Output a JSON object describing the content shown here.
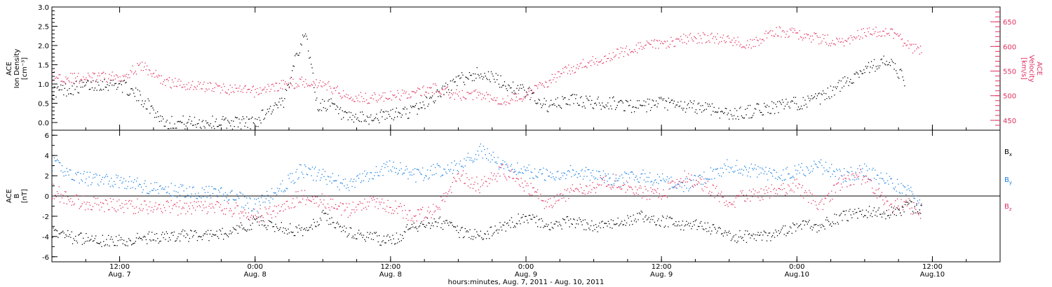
{
  "colors": {
    "black": "#000000",
    "red": "#e0305f",
    "blue": "#1a7fe0"
  },
  "xaxis": {
    "title": "hours:minutes, Aug.  7, 2011 - Aug. 10, 2011",
    "start": "2011-08-07T06:00",
    "end": "2011-08-10T18:00",
    "ticks": [
      {
        "time": "2011-08-07T12:00",
        "line1": "12:00",
        "line2": "Aug. 7"
      },
      {
        "time": "2011-08-08T00:00",
        "line1": "0:00",
        "line2": "Aug. 8"
      },
      {
        "time": "2011-08-08T12:00",
        "line1": "12:00",
        "line2": "Aug. 8"
      },
      {
        "time": "2011-08-09T00:00",
        "line1": "0:00",
        "line2": "Aug. 9"
      },
      {
        "time": "2011-08-09T12:00",
        "line1": "12:00",
        "line2": "Aug. 9"
      },
      {
        "time": "2011-08-10T00:00",
        "line1": "0:00",
        "line2": "Aug.10"
      },
      {
        "time": "2011-08-10T12:00",
        "line1": "12:00",
        "line2": "Aug.10"
      }
    ]
  },
  "chart_data": [
    {
      "type": "scatter",
      "panel": "top",
      "left_axis": {
        "label_lines": [
          "ACE",
          "Ion Density",
          "[cm⁻³]"
        ],
        "ylim": [
          -0.2,
          3.0
        ],
        "ticks": [
          "0.0",
          "0.5",
          "1.0",
          "1.5",
          "2.0",
          "2.5",
          "3.0"
        ],
        "tick_values": [
          0.0,
          0.5,
          1.0,
          1.5,
          2.0,
          2.5,
          3.0
        ],
        "color": "#000000"
      },
      "right_axis": {
        "label_lines": [
          "ACE",
          "Velocity",
          "[km/s]"
        ],
        "ylim": [
          430,
          680
        ],
        "ticks": [
          "450",
          "500",
          "550",
          "600",
          "650"
        ],
        "tick_values": [
          450,
          500,
          550,
          600,
          650
        ],
        "color": "#e0305f"
      },
      "series": [
        {
          "axis": "left",
          "color": "#000000",
          "points": [
            [
              "2011-08-07T06:00",
              0.8
            ],
            [
              "2011-08-07T08:00",
              0.9
            ],
            [
              "2011-08-07T10:00",
              1.0
            ],
            [
              "2011-08-07T12:00",
              1.0
            ],
            [
              "2011-08-07T14:00",
              0.6
            ],
            [
              "2011-08-07T16:00",
              0.0
            ],
            [
              "2011-08-07T20:00",
              0.0
            ],
            [
              "2011-08-08T00:00",
              0.0
            ],
            [
              "2011-08-08T01:00",
              0.3
            ],
            [
              "2011-08-08T02:30",
              0.5
            ],
            [
              "2011-08-08T03:30",
              1.7
            ],
            [
              "2011-08-08T04:30",
              2.3
            ],
            [
              "2011-08-08T05:30",
              0.4
            ],
            [
              "2011-08-08T06:30",
              0.5
            ],
            [
              "2011-08-08T08:00",
              0.1
            ],
            [
              "2011-08-08T10:00",
              0.1
            ],
            [
              "2011-08-08T12:00",
              0.2
            ],
            [
              "2011-08-08T14:00",
              0.3
            ],
            [
              "2011-08-08T16:00",
              0.7
            ],
            [
              "2011-08-08T18:00",
              1.1
            ],
            [
              "2011-08-08T20:00",
              1.3
            ],
            [
              "2011-08-08T22:00",
              1.0
            ],
            [
              "2011-08-09T00:00",
              0.8
            ],
            [
              "2011-08-09T02:00",
              0.4
            ],
            [
              "2011-08-09T04:00",
              0.6
            ],
            [
              "2011-08-09T06:00",
              0.5
            ],
            [
              "2011-08-09T08:00",
              0.5
            ],
            [
              "2011-08-09T10:00",
              0.4
            ],
            [
              "2011-08-09T12:00",
              0.5
            ],
            [
              "2011-08-09T14:00",
              0.4
            ],
            [
              "2011-08-09T16:00",
              0.4
            ],
            [
              "2011-08-09T18:00",
              0.2
            ],
            [
              "2011-08-09T20:00",
              0.3
            ],
            [
              "2011-08-09T22:00",
              0.4
            ],
            [
              "2011-08-10T00:00",
              0.5
            ],
            [
              "2011-08-10T02:00",
              0.6
            ],
            [
              "2011-08-10T04:00",
              1.0
            ],
            [
              "2011-08-10T06:00",
              1.4
            ],
            [
              "2011-08-10T08:00",
              1.6
            ],
            [
              "2011-08-10T09:30",
              1.1
            ]
          ]
        },
        {
          "axis": "right",
          "color": "#e0305f",
          "points": [
            [
              "2011-08-07T06:00",
              540
            ],
            [
              "2011-08-07T08:00",
              535
            ],
            [
              "2011-08-07T10:00",
              537
            ],
            [
              "2011-08-07T12:00",
              538
            ],
            [
              "2011-08-07T14:00",
              560
            ],
            [
              "2011-08-07T16:00",
              528
            ],
            [
              "2011-08-07T18:00",
              522
            ],
            [
              "2011-08-07T20:00",
              518
            ],
            [
              "2011-08-07T22:00",
              512
            ],
            [
              "2011-08-08T00:00",
              508
            ],
            [
              "2011-08-08T02:00",
              520
            ],
            [
              "2011-08-08T04:00",
              528
            ],
            [
              "2011-08-08T06:00",
              525
            ],
            [
              "2011-08-08T08:00",
              500
            ],
            [
              "2011-08-08T10:00",
              495
            ],
            [
              "2011-08-08T12:00",
              498
            ],
            [
              "2011-08-08T14:00",
              505
            ],
            [
              "2011-08-08T16:00",
              515
            ],
            [
              "2011-08-08T18:00",
              500
            ],
            [
              "2011-08-08T20:00",
              503
            ],
            [
              "2011-08-08T22:00",
              490
            ],
            [
              "2011-08-09T00:00",
              500
            ],
            [
              "2011-08-09T02:00",
              530
            ],
            [
              "2011-08-09T04:00",
              555
            ],
            [
              "2011-08-09T06:00",
              570
            ],
            [
              "2011-08-09T08:00",
              585
            ],
            [
              "2011-08-09T10:00",
              598
            ],
            [
              "2011-08-09T12:00",
              605
            ],
            [
              "2011-08-09T14:00",
              615
            ],
            [
              "2011-08-09T16:00",
              618
            ],
            [
              "2011-08-09T18:00",
              612
            ],
            [
              "2011-08-09T20:00",
              605
            ],
            [
              "2011-08-09T22:00",
              630
            ],
            [
              "2011-08-10T00:00",
              625
            ],
            [
              "2011-08-10T02:00",
              615
            ],
            [
              "2011-08-10T04:00",
              608
            ],
            [
              "2011-08-10T06:00",
              628
            ],
            [
              "2011-08-10T08:00",
              632
            ],
            [
              "2011-08-10T10:00",
              600
            ],
            [
              "2011-08-10T11:00",
              590
            ]
          ]
        }
      ]
    },
    {
      "type": "scatter",
      "panel": "bottom",
      "left_axis": {
        "label_lines": [
          "ACE",
          "B",
          "[nT]"
        ],
        "ylim": [
          -6.5,
          6.5
        ],
        "ticks": [
          "-6",
          "-4",
          "-2",
          "0",
          "2",
          "4",
          "6"
        ],
        "tick_values": [
          -6,
          -4,
          -2,
          0,
          2,
          4,
          6
        ],
        "color": "#000000"
      },
      "zero_line": 0,
      "legend": [
        {
          "label": "B",
          "sub": "x",
          "color": "#000000"
        },
        {
          "label": "B",
          "sub": "y",
          "color": "#1a7fe0"
        },
        {
          "label": "B",
          "sub": "z",
          "color": "#e0305f"
        }
      ],
      "series": [
        {
          "name": "Bx",
          "color": "#000000",
          "points": [
            [
              "2011-08-07T06:00",
              -3.5
            ],
            [
              "2011-08-07T08:00",
              -4.2
            ],
            [
              "2011-08-07T10:00",
              -4.4
            ],
            [
              "2011-08-07T12:00",
              -4.4
            ],
            [
              "2011-08-07T14:00",
              -4.2
            ],
            [
              "2011-08-07T16:00",
              -4.0
            ],
            [
              "2011-08-07T18:00",
              -3.9
            ],
            [
              "2011-08-07T20:00",
              -3.9
            ],
            [
              "2011-08-07T22:00",
              -3.6
            ],
            [
              "2011-08-08T00:00",
              -2.5
            ],
            [
              "2011-08-08T02:00",
              -3.0
            ],
            [
              "2011-08-08T04:00",
              -3.5
            ],
            [
              "2011-08-08T06:00",
              -2.0
            ],
            [
              "2011-08-08T08:00",
              -3.5
            ],
            [
              "2011-08-08T10:00",
              -4.0
            ],
            [
              "2011-08-08T12:00",
              -4.5
            ],
            [
              "2011-08-08T14:00",
              -3.0
            ],
            [
              "2011-08-08T16:00",
              -2.5
            ],
            [
              "2011-08-08T18:00",
              -3.5
            ],
            [
              "2011-08-08T20:00",
              -4.0
            ],
            [
              "2011-08-08T22:00",
              -3.0
            ],
            [
              "2011-08-09T00:00",
              -2.0
            ],
            [
              "2011-08-09T02:00",
              -3.0
            ],
            [
              "2011-08-09T04:00",
              -2.5
            ],
            [
              "2011-08-09T06:00",
              -3.0
            ],
            [
              "2011-08-09T08:00",
              -2.8
            ],
            [
              "2011-08-09T10:00",
              -2.0
            ],
            [
              "2011-08-09T12:00",
              -2.5
            ],
            [
              "2011-08-09T14:00",
              -2.8
            ],
            [
              "2011-08-09T16:00",
              -3.0
            ],
            [
              "2011-08-09T18:00",
              -4.0
            ],
            [
              "2011-08-09T20:00",
              -4.0
            ],
            [
              "2011-08-09T22:00",
              -3.8
            ],
            [
              "2011-08-10T00:00",
              -3.0
            ],
            [
              "2011-08-10T02:00",
              -3.0
            ],
            [
              "2011-08-10T04:00",
              -2.0
            ],
            [
              "2011-08-10T06:00",
              -1.5
            ],
            [
              "2011-08-10T08:00",
              -1.8
            ],
            [
              "2011-08-10T10:00",
              -1.0
            ],
            [
              "2011-08-10T11:00",
              -1.5
            ]
          ]
        },
        {
          "name": "By",
          "color": "#1a7fe0",
          "points": [
            [
              "2011-08-07T06:00",
              3.2
            ],
            [
              "2011-08-07T08:00",
              2.0
            ],
            [
              "2011-08-07T10:00",
              1.5
            ],
            [
              "2011-08-07T12:00",
              1.5
            ],
            [
              "2011-08-07T14:00",
              1.0
            ],
            [
              "2011-08-07T16:00",
              0.6
            ],
            [
              "2011-08-07T18:00",
              0.5
            ],
            [
              "2011-08-07T20:00",
              0.3
            ],
            [
              "2011-08-07T22:00",
              0.0
            ],
            [
              "2011-08-08T00:00",
              -1.0
            ],
            [
              "2011-08-08T02:00",
              0.5
            ],
            [
              "2011-08-08T04:00",
              2.5
            ],
            [
              "2011-08-08T06:00",
              2.0
            ],
            [
              "2011-08-08T08:00",
              1.0
            ],
            [
              "2011-08-08T10:00",
              2.0
            ],
            [
              "2011-08-08T12:00",
              3.0
            ],
            [
              "2011-08-08T14:00",
              2.0
            ],
            [
              "2011-08-08T16:00",
              2.5
            ],
            [
              "2011-08-08T18:00",
              3.0
            ],
            [
              "2011-08-08T20:00",
              4.5
            ],
            [
              "2011-08-08T22:00",
              3.0
            ],
            [
              "2011-08-09T00:00",
              2.5
            ],
            [
              "2011-08-09T02:00",
              2.0
            ],
            [
              "2011-08-09T04:00",
              2.5
            ],
            [
              "2011-08-09T06:00",
              2.0
            ],
            [
              "2011-08-09T08:00",
              1.5
            ],
            [
              "2011-08-09T10:00",
              2.0
            ],
            [
              "2011-08-09T12:00",
              1.5
            ],
            [
              "2011-08-09T14:00",
              1.0
            ],
            [
              "2011-08-09T16:00",
              2.0
            ],
            [
              "2011-08-09T18:00",
              3.0
            ],
            [
              "2011-08-09T20:00",
              2.5
            ],
            [
              "2011-08-09T22:00",
              2.0
            ],
            [
              "2011-08-10T00:00",
              2.5
            ],
            [
              "2011-08-10T02:00",
              3.0
            ],
            [
              "2011-08-10T04:00",
              2.0
            ],
            [
              "2011-08-10T06:00",
              2.5
            ],
            [
              "2011-08-10T08:00",
              1.5
            ],
            [
              "2011-08-10T10:00",
              0.5
            ],
            [
              "2011-08-10T11:00",
              -1.0
            ]
          ]
        },
        {
          "name": "Bz",
          "color": "#e0305f",
          "points": [
            [
              "2011-08-07T06:00",
              0.5
            ],
            [
              "2011-08-07T08:00",
              -0.5
            ],
            [
              "2011-08-07T10:00",
              -0.8
            ],
            [
              "2011-08-07T12:00",
              -1.0
            ],
            [
              "2011-08-07T14:00",
              -1.0
            ],
            [
              "2011-08-07T16:00",
              -1.1
            ],
            [
              "2011-08-07T18:00",
              -1.2
            ],
            [
              "2011-08-07T20:00",
              -1.2
            ],
            [
              "2011-08-07T22:00",
              -1.3
            ],
            [
              "2011-08-08T00:00",
              -2.0
            ],
            [
              "2011-08-08T02:00",
              -1.5
            ],
            [
              "2011-08-08T04:00",
              0.0
            ],
            [
              "2011-08-08T06:00",
              -0.5
            ],
            [
              "2011-08-08T08:00",
              -1.5
            ],
            [
              "2011-08-08T10:00",
              -0.5
            ],
            [
              "2011-08-08T12:00",
              -1.0
            ],
            [
              "2011-08-08T14:00",
              -2.0
            ],
            [
              "2011-08-08T16:00",
              -1.5
            ],
            [
              "2011-08-08T18:00",
              2.0
            ],
            [
              "2011-08-08T20:00",
              1.0
            ],
            [
              "2011-08-08T22:00",
              2.5
            ],
            [
              "2011-08-09T00:00",
              1.0
            ],
            [
              "2011-08-09T02:00",
              -1.0
            ],
            [
              "2011-08-09T04:00",
              0.5
            ],
            [
              "2011-08-09T06:00",
              1.0
            ],
            [
              "2011-08-09T08:00",
              1.5
            ],
            [
              "2011-08-09T10:00",
              0.5
            ],
            [
              "2011-08-09T12:00",
              0.0
            ],
            [
              "2011-08-09T14:00",
              2.0
            ],
            [
              "2011-08-09T16:00",
              1.0
            ],
            [
              "2011-08-09T18:00",
              -0.5
            ],
            [
              "2011-08-09T20:00",
              0.0
            ],
            [
              "2011-08-09T22:00",
              0.5
            ],
            [
              "2011-08-10T00:00",
              1.0
            ],
            [
              "2011-08-10T02:00",
              -1.0
            ],
            [
              "2011-08-10T04:00",
              1.5
            ],
            [
              "2011-08-10T06:00",
              2.0
            ],
            [
              "2011-08-10T08:00",
              -1.0
            ],
            [
              "2011-08-10T10:00",
              -1.0
            ],
            [
              "2011-08-10T11:00",
              -1.5
            ]
          ]
        }
      ]
    }
  ]
}
